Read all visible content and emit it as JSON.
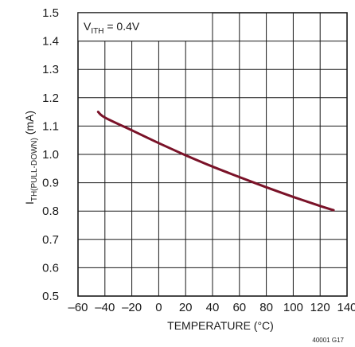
{
  "chart_data": {
    "type": "line",
    "xlabel": "TEMPERATURE (°C)",
    "ylabel": "I",
    "ylabel_sub": "TH(PULL-DOWN)",
    "ylabel_unit": " (mA)",
    "xlim": [
      -60,
      140
    ],
    "ylim": [
      0.5,
      1.5
    ],
    "x_ticks": [
      -60,
      -40,
      -20,
      0,
      20,
      40,
      60,
      80,
      100,
      120,
      140
    ],
    "x_tick_labels": [
      "–60",
      "–40",
      "–20",
      "0",
      "20",
      "40",
      "60",
      "80",
      "100",
      "120",
      "140"
    ],
    "y_ticks": [
      0.5,
      0.6,
      0.7,
      0.8,
      0.9,
      1.0,
      1.1,
      1.2,
      1.3,
      1.4,
      1.5
    ],
    "y_tick_labels": [
      "0.5",
      "0.6",
      "0.7",
      "0.8",
      "0.9",
      "1.0",
      "1.1",
      "1.2",
      "1.3",
      "1.4",
      "1.5"
    ],
    "grid": true,
    "series": [
      {
        "color": "#7a1228",
        "x": [
          -45,
          -40,
          -20,
          0,
          20,
          40,
          60,
          80,
          100,
          120,
          130
        ],
        "y": [
          1.15,
          1.13,
          1.085,
          1.04,
          0.997,
          0.957,
          0.92,
          0.884,
          0.85,
          0.818,
          0.803
        ]
      }
    ],
    "annotation": {
      "prefix": "V",
      "sub": "ITH",
      "suffix": " = 0.4V"
    },
    "figure_code": "40001 G17"
  }
}
